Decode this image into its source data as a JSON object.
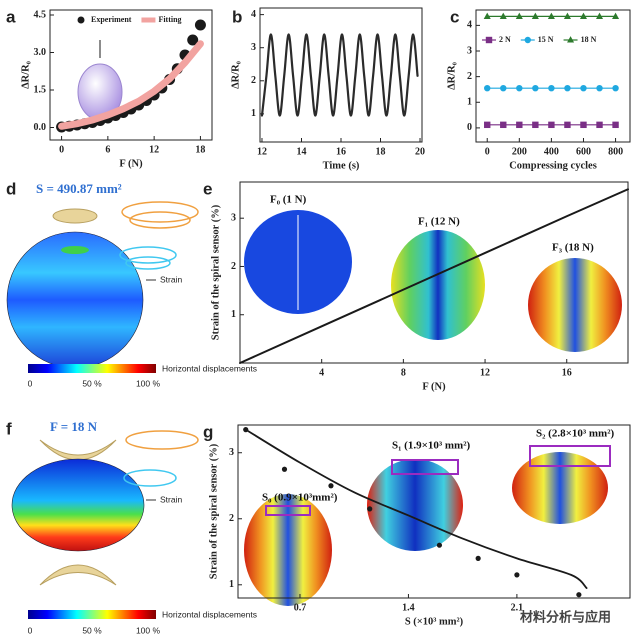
{
  "chart_data": [
    {
      "label": "a",
      "type": "scatter",
      "xlabel": "F (N)",
      "ylabel": "ΔR/R₀",
      "xlim": [
        -1.5,
        19.5
      ],
      "ylim": [
        -0.5,
        4.7
      ],
      "xticks": [
        0,
        6,
        12,
        18
      ],
      "yticks": [
        {
          "value": 0,
          "label": "0.0"
        },
        {
          "value": 1.5,
          "label": "1.5"
        },
        {
          "value": 3,
          "label": "3.0"
        },
        {
          "value": 4.5,
          "label": "4.5"
        }
      ],
      "legend": "upper left",
      "series": [
        {
          "name": "Experiment",
          "color": "#1a1a1a",
          "mode": "markers",
          "marker": "circle",
          "x": [
            0,
            1,
            2,
            3,
            4,
            5,
            6,
            7,
            8,
            9,
            10,
            11,
            12,
            13,
            14,
            15,
            16,
            17,
            18
          ],
          "values": [
            0.02,
            0.05,
            0.1,
            0.15,
            0.2,
            0.28,
            0.38,
            0.48,
            0.6,
            0.74,
            0.9,
            1.08,
            1.3,
            1.58,
            1.92,
            2.35,
            2.9,
            3.5,
            4.1
          ]
        },
        {
          "name": "Fitting",
          "color": "#f2a3a0",
          "mode": "line",
          "x": [
            0,
            2,
            4,
            6,
            8,
            10,
            12,
            14,
            16,
            18
          ],
          "values": [
            0.05,
            0.15,
            0.3,
            0.5,
            0.75,
            1.05,
            1.45,
            1.95,
            2.6,
            3.35
          ]
        }
      ]
    },
    {
      "label": "b",
      "type": "line",
      "smooth": true,
      "xlabel": "Time (s)",
      "ylabel": "ΔR/R₀",
      "xlim": [
        11.9,
        20.1
      ],
      "ylim": [
        0.15,
        4.2
      ],
      "xticks": [
        12,
        14,
        16,
        18,
        20
      ],
      "yticks": [
        1,
        2,
        3,
        4
      ],
      "series": [
        {
          "color": "#2b2b2b",
          "mode": "line",
          "x": [
            12,
            12.225,
            12.45,
            12.675,
            12.9,
            13.125,
            13.35,
            13.575,
            13.8,
            14.025,
            14.25,
            14.475,
            14.7,
            14.925,
            15.15,
            15.375,
            15.6,
            15.825,
            16.05,
            16.275,
            16.5,
            16.725,
            16.95,
            17.175,
            17.4,
            17.625,
            17.85,
            18.075,
            18.3,
            18.525,
            18.75,
            18.975,
            19.2,
            19.425,
            19.65,
            19.875
          ],
          "values": [
            0.95,
            2.15,
            3.4,
            2.15,
            0.95,
            2.15,
            3.4,
            2.15,
            0.95,
            2.15,
            3.4,
            2.15,
            0.95,
            2.15,
            3.4,
            2.15,
            0.95,
            2.15,
            3.4,
            2.15,
            0.95,
            2.15,
            3.4,
            2.15,
            0.95,
            2.15,
            3.4,
            2.15,
            0.95,
            2.15,
            3.4,
            2.15,
            0.95,
            2.15,
            3.4,
            2.15
          ]
        }
      ]
    },
    {
      "label": "c",
      "type": "line",
      "xlabel": "Compressing cycles",
      "ylabel": "ΔR/R₀",
      "xlim": [
        -70,
        890
      ],
      "ylim": [
        -0.55,
        4.6
      ],
      "xticks": [
        0,
        200,
        400,
        600,
        800
      ],
      "yticks": [
        0,
        1,
        2,
        3,
        4
      ],
      "legend": "upper left",
      "series": [
        {
          "name": "2 N",
          "color": "#7a2f86",
          "mode": "line+markers",
          "marker": "square",
          "x": [
            0,
            100,
            200,
            300,
            400,
            500,
            600,
            700,
            800
          ],
          "values": [
            0.12,
            0.12,
            0.12,
            0.12,
            0.12,
            0.12,
            0.12,
            0.12,
            0.12
          ]
        },
        {
          "name": "15 N",
          "color": "#1fa8e0",
          "mode": "line+markers",
          "marker": "circle",
          "x": [
            0,
            100,
            200,
            300,
            400,
            500,
            600,
            700,
            800
          ],
          "values": [
            1.55,
            1.55,
            1.55,
            1.55,
            1.55,
            1.55,
            1.55,
            1.55,
            1.55
          ]
        },
        {
          "name": "18 N",
          "color": "#2d7a2d",
          "mode": "line+markers",
          "marker": "triangle",
          "x": [
            0,
            100,
            200,
            300,
            400,
            500,
            600,
            700,
            800
          ],
          "values": [
            4.35,
            4.35,
            4.35,
            4.35,
            4.35,
            4.35,
            4.35,
            4.35,
            4.35
          ]
        }
      ]
    },
    {
      "label": "e",
      "type": "line",
      "xlabel": "F (N)",
      "ylabel": "Strain of the spiral sensor (%)",
      "xlim": [
        0,
        19
      ],
      "ylim": [
        0,
        3.75
      ],
      "xticks": [
        4,
        8,
        12,
        16
      ],
      "yticks": [
        1,
        2,
        3
      ],
      "annotations": [
        "F₀ (1 N)",
        "F₁ (12 N)",
        "F₃ (18 N)"
      ],
      "series": [
        {
          "color": "#1a1a1a",
          "mode": "line",
          "x": [
            0,
            4,
            8,
            12,
            16,
            19
          ],
          "values": [
            0,
            0.76,
            1.52,
            2.28,
            3.04,
            3.6
          ]
        }
      ]
    },
    {
      "label": "g",
      "type": "scatter",
      "xlabel": "S (×10³ mm²)",
      "ylabel": "Strain of the spiral sensor (%)",
      "xlim": [
        0.3,
        2.83
      ],
      "ylim": [
        0.8,
        3.42
      ],
      "xticks": [
        0.7,
        1.4,
        2.1
      ],
      "yticks": [
        1,
        2,
        3
      ],
      "annotations": [
        "S₀ (0.9×10³mm²)",
        "S₁ (1.9×10³ mm²)",
        "S₂ (2.8×10³ mm²)"
      ],
      "series": [
        {
          "color": "#1a1a1a",
          "mode": "markers",
          "marker": "circle",
          "x": [
            0.35,
            0.6,
            0.9,
            1.15,
            1.6,
            1.85,
            2.1,
            2.5
          ],
          "values": [
            3.35,
            2.75,
            2.5,
            2.15,
            1.6,
            1.4,
            1.15,
            0.85
          ]
        },
        {
          "color": "#1a1a1a",
          "mode": "line",
          "x": [
            0.35,
            0.7,
            1.05,
            1.4,
            1.75,
            2.1,
            2.45,
            2.55
          ],
          "values": [
            3.35,
            2.85,
            2.4,
            2.05,
            1.7,
            1.4,
            1.15,
            0.95
          ]
        }
      ]
    }
  ],
  "panel_d": {
    "label": "d",
    "title": "S = 490.87 mm²",
    "strain_label": "Strain",
    "colorbar_ticks": [
      "0",
      "50 %",
      "100 %"
    ],
    "colorbar_label": "Horizontal displacements"
  },
  "panel_f": {
    "label": "f",
    "title": "F = 18 N",
    "strain_label": "Strain",
    "colorbar_ticks": [
      "0",
      "50 %",
      "100 %"
    ],
    "colorbar_label": "Horizontal displacements"
  },
  "watermark": "材料分析与应用"
}
